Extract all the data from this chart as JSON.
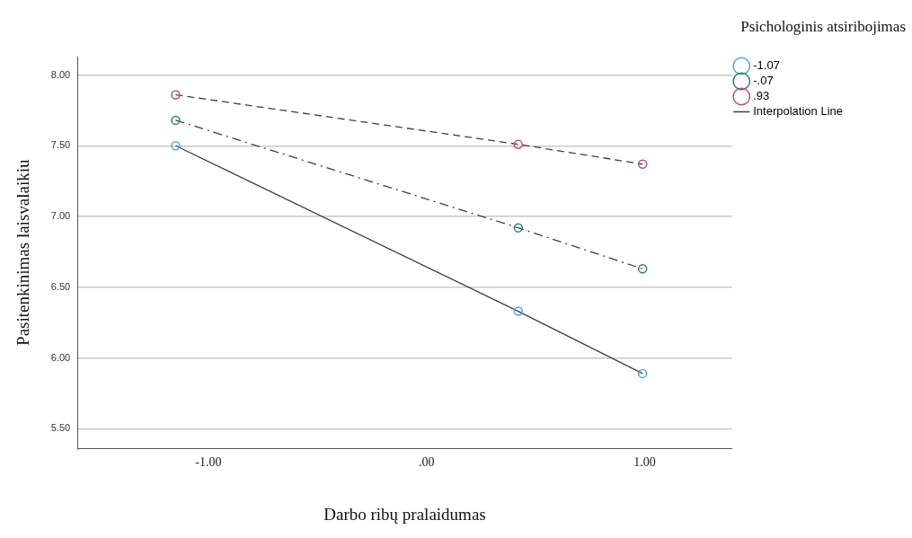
{
  "chart_data": {
    "type": "line",
    "xlabel": "Darbo ribų pralaidumas",
    "ylabel": "Pasitenkinimas laisvalaikiu",
    "legend_title": "Psichologinis atsiribojimas",
    "x": [
      -1.15,
      0.42,
      0.99
    ],
    "series": [
      {
        "name": "-1.07",
        "color": "#4aa8e0",
        "values": [
          7.5,
          6.33,
          5.89
        ],
        "line_style": "solid"
      },
      {
        "name": "-.07",
        "color": "#2e7d78",
        "values": [
          7.68,
          6.92,
          6.63
        ],
        "line_style": "dashdot"
      },
      {
        "name": ".93",
        "color": "#c0507a",
        "values": [
          7.86,
          7.51,
          7.37
        ],
        "line_style": "dashed"
      }
    ],
    "annotations": [
      "Interpolation Line"
    ],
    "xlim": [
      -1.6,
      1.4
    ],
    "xticks": [
      {
        "value": -1,
        "label": "-1.00"
      },
      {
        "value": 0,
        "label": ".00"
      },
      {
        "value": 1,
        "label": "1.00"
      }
    ],
    "ylim": [
      5.36,
      8.13
    ],
    "yticks": [
      {
        "value": 5.5,
        "label": "5.50"
      },
      {
        "value": 6,
        "label": "6.00"
      },
      {
        "value": 6.5,
        "label": "6.50"
      },
      {
        "value": 7,
        "label": "7.00"
      },
      {
        "value": 7.5,
        "label": "7.50"
      },
      {
        "value": 8,
        "label": "8.00"
      }
    ],
    "grid": "y",
    "legend": "right",
    "marker": "circle"
  }
}
